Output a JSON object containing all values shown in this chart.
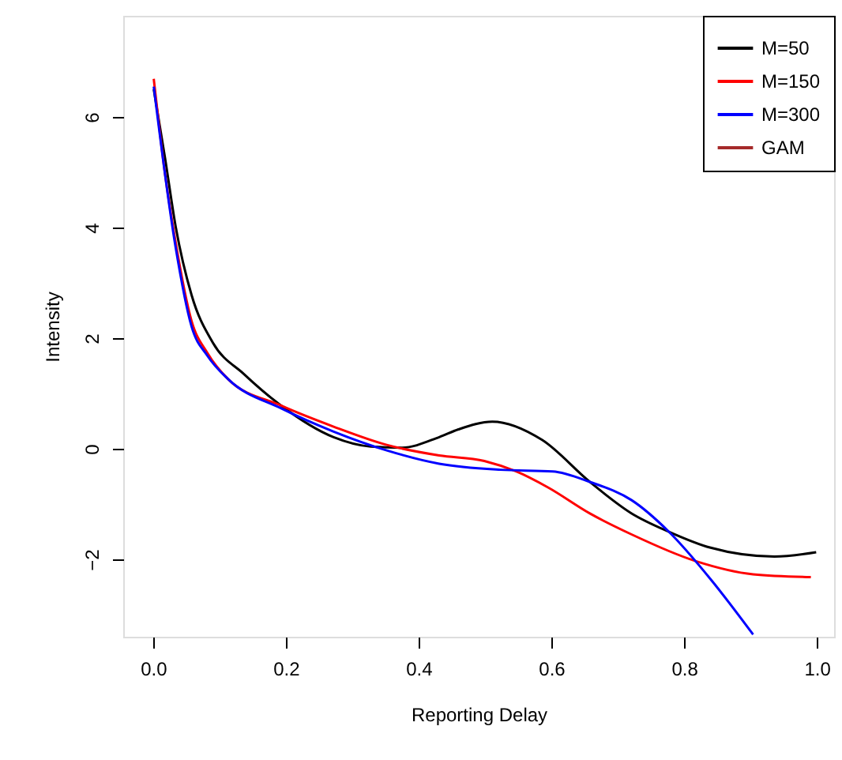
{
  "chart_data": {
    "type": "line",
    "xlabel": "Reporting Delay",
    "ylabel": "Intensity",
    "xlim": [
      -0.045,
      1.026
    ],
    "ylim": [
      -3.4,
      7.83
    ],
    "xticks": [
      {
        "value": 0,
        "label": "0.0"
      },
      0.2,
      0.4,
      0.6,
      0.8,
      {
        "value": 1,
        "label": "1.0"
      }
    ],
    "yticks": [
      -2,
      0,
      2,
      4,
      6
    ],
    "grid": false,
    "legend": "top right",
    "line_style": "solid",
    "marker": "none",
    "series": [
      {
        "name": "M=50",
        "color": "#000000",
        "x": [
          0.001,
          0.018,
          0.034,
          0.058,
          0.09,
          0.137,
          0.193,
          0.272,
          0.328,
          0.375,
          0.431,
          0.46,
          0.511,
          0.586,
          0.658,
          0.721,
          0.777,
          0.84,
          0.936,
          0.999
        ],
        "values": [
          6.5,
          5.26,
          4.02,
          2.78,
          1.92,
          1.35,
          0.78,
          0.21,
          0.04,
          0.02,
          0.21,
          0.35,
          0.49,
          0.16,
          -0.6,
          -1.17,
          -1.5,
          -1.79,
          -1.95,
          -1.87
        ]
      },
      {
        "name": "M=150",
        "color": "#ff0000",
        "x": [
          0.001,
          0.018,
          0.034,
          0.058,
          0.082,
          0.113,
          0.193,
          0.272,
          0.352,
          0.431,
          0.499,
          0.547,
          0.595,
          0.658,
          0.721,
          0.817,
          0.904,
          0.991
        ],
        "values": [
          6.69,
          4.97,
          3.73,
          2.31,
          1.73,
          1.26,
          0.78,
          0.4,
          0.07,
          -0.12,
          -0.22,
          -0.41,
          -0.7,
          -1.17,
          -1.55,
          -2.03,
          -2.27,
          -2.32
        ]
      },
      {
        "name": "M=300",
        "color": "#0000ff",
        "x": [
          0.001,
          0.034,
          0.058,
          0.082,
          0.113,
          0.193,
          0.272,
          0.352,
          0.431,
          0.523,
          0.602,
          0.658,
          0.721,
          0.777,
          0.84,
          0.904
        ],
        "values": [
          6.55,
          3.64,
          2.21,
          1.68,
          1.26,
          0.73,
          0.31,
          -0.03,
          -0.27,
          -0.38,
          -0.41,
          -0.6,
          -0.93,
          -1.5,
          -2.36,
          -3.36
        ]
      },
      {
        "name": "GAM",
        "color": "#a52a2a"
      }
    ]
  }
}
